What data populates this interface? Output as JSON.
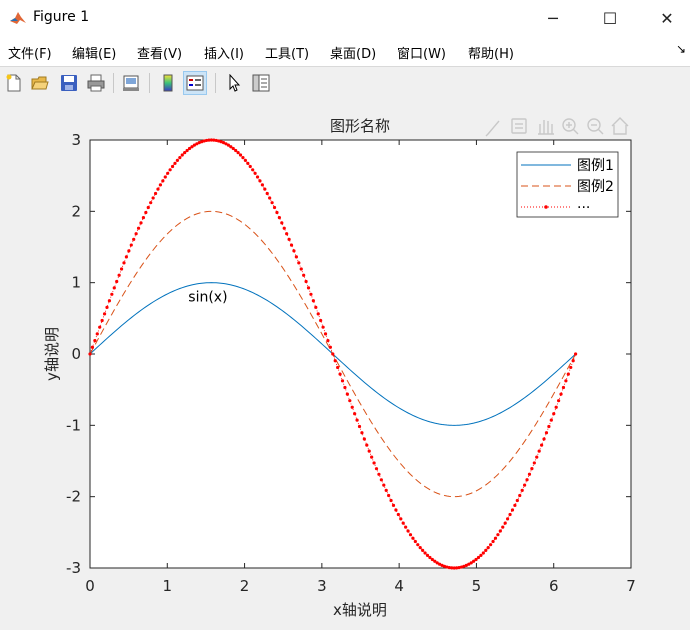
{
  "window": {
    "title": "Figure 1"
  },
  "controls": {
    "minimize": "─",
    "maximize": "☐",
    "close": "✕"
  },
  "menu": [
    "文件(F)",
    "编辑(E)",
    "查看(V)",
    "插入(I)",
    "工具(T)",
    "桌面(D)",
    "窗口(W)",
    "帮助(H)"
  ],
  "menu_overflow": "↘",
  "toolbar": [
    "new-figure",
    "open",
    "save",
    "print",
    "link-plot",
    "colorbar",
    "legend",
    "select",
    "property-editor"
  ],
  "axes_toolbar": [
    "brush",
    "data-tips",
    "pan",
    "zoom-in",
    "zoom-out",
    "home"
  ],
  "chart_data": {
    "type": "line",
    "title": "图形名称",
    "xlabel": "x轴说明",
    "ylabel": "y轴说明",
    "xlim": [
      0,
      7
    ],
    "ylim": [
      -3,
      3
    ],
    "xticks": [
      "0",
      "1",
      "2",
      "3",
      "4",
      "5",
      "6",
      "7"
    ],
    "yticks": [
      "3",
      "2",
      "1",
      "0",
      "-1",
      "-2",
      "-3"
    ],
    "x_range": [
      0,
      6.2832
    ],
    "series": [
      {
        "name": "图例1",
        "function": "sin(x)",
        "style": "solid",
        "color": "#0072bd"
      },
      {
        "name": "图例2",
        "function": "2*sin(x)",
        "style": "dashed",
        "color": "#d95319"
      },
      {
        "name": "···",
        "function": "3*sin(x)",
        "style": "dotted-markers",
        "color": "#ff0000"
      }
    ],
    "legend_position": "top-right",
    "annotation": {
      "text": "sin(x)",
      "x": 1.5,
      "y": 0.78
    },
    "grid": false
  }
}
